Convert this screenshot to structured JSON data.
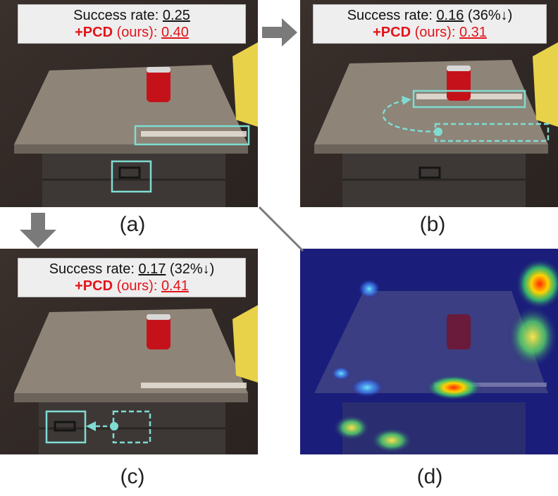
{
  "panels": {
    "a": {
      "label": "(a)",
      "rate_label": "Success rate: ",
      "rate_value": "0.25",
      "rate_change": "",
      "pcd_prefix": "+PCD",
      "pcd_label": " (ours): ",
      "pcd_value": "0.40"
    },
    "b": {
      "label": "(b)",
      "rate_label": "Success rate: ",
      "rate_value": "0.16",
      "rate_change": " (36%↓)",
      "pcd_prefix": "+PCD",
      "pcd_label": " (ours): ",
      "pcd_value": "0.31"
    },
    "c": {
      "label": "(c)",
      "rate_label": "Success rate: ",
      "rate_value": "0.17",
      "rate_change": " (32%↓)",
      "pcd_prefix": "+PCD",
      "pcd_label": " (ours): ",
      "pcd_value": "0.41"
    },
    "d": {
      "label": "(d)"
    }
  },
  "colors": {
    "highlight": "#7fdcd2",
    "accent_red": "#e3141b",
    "arrow_gray": "#7a7a7a"
  }
}
